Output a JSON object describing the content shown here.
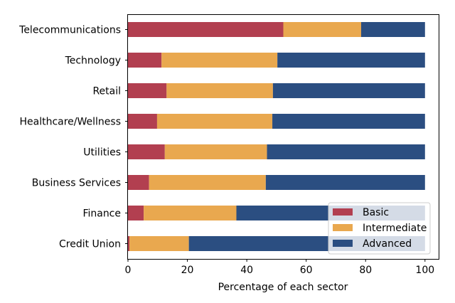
{
  "chart_data": {
    "type": "bar",
    "orientation": "horizontal",
    "stacked": true,
    "categories": [
      "Telecommunications",
      "Technology",
      "Retail",
      "Healthcare/Wellness",
      "Utilities",
      "Business Services",
      "Finance",
      "Credit Union"
    ],
    "series": [
      {
        "name": "Basic",
        "color": "#b23f50",
        "values": [
          52.3,
          11.3,
          13.0,
          9.8,
          12.4,
          7.1,
          5.3,
          0.5
        ]
      },
      {
        "name": "Intermediate",
        "color": "#e9a84f",
        "values": [
          26.2,
          39.0,
          35.8,
          38.8,
          34.4,
          39.3,
          31.2,
          20.0
        ]
      },
      {
        "name": "Advanced",
        "color": "#2b4e81",
        "values": [
          21.5,
          49.7,
          51.2,
          51.4,
          53.2,
          53.6,
          63.5,
          79.5
        ]
      }
    ],
    "xlabel": "Percentage of each sector",
    "ylabel": "",
    "xlim": [
      0,
      105
    ],
    "xticks": [
      "0",
      "20",
      "40",
      "60",
      "80",
      "100"
    ],
    "grid": false,
    "legend": "lower-right"
  }
}
